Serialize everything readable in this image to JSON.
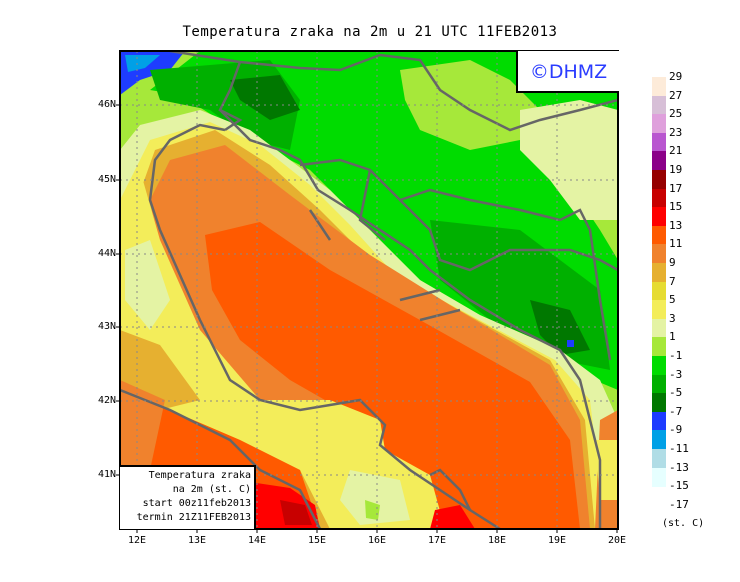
{
  "title": "Temperatura zraka na 2m u 21 UTC 11FEB2013",
  "logo": "©DHMZ",
  "info_box": {
    "lines": [
      "Temperatura zraka",
      "na 2m (st. C)",
      "start 00z11feb2013",
      "termin 21Z11FEB2013"
    ]
  },
  "axes": {
    "lat_labels": [
      "46N",
      "45N",
      "44N",
      "43N",
      "42N",
      "41N"
    ],
    "lon_labels": [
      "12E",
      "13E",
      "14E",
      "15E",
      "16E",
      "17E",
      "18E",
      "19E",
      "20E"
    ]
  },
  "legend": {
    "levels": [
      "29",
      "27",
      "25",
      "23",
      "21",
      "19",
      "17",
      "15",
      "13",
      "11",
      "9",
      "7",
      "5",
      "3",
      "1",
      "-1",
      "-3",
      "-5",
      "-7",
      "-9",
      "-11",
      "-13",
      "-15",
      "-17"
    ],
    "colors": [
      "#fdebd9",
      "#d7bfd7",
      "#dfa0dc",
      "#b956d0",
      "#8b0089",
      "#960000",
      "#c80000",
      "#ff0000",
      "#ff5a00",
      "#f0822d",
      "#e6b030",
      "#e6dc32",
      "#f3ed5a",
      "#e4f3a4",
      "#a6e83a",
      "#00dc00",
      "#00b000",
      "#007800",
      "#1e3cff",
      "#00a0e6",
      "#b0dde6",
      "#e6ffff"
    ],
    "units": "(st. C)"
  }
}
